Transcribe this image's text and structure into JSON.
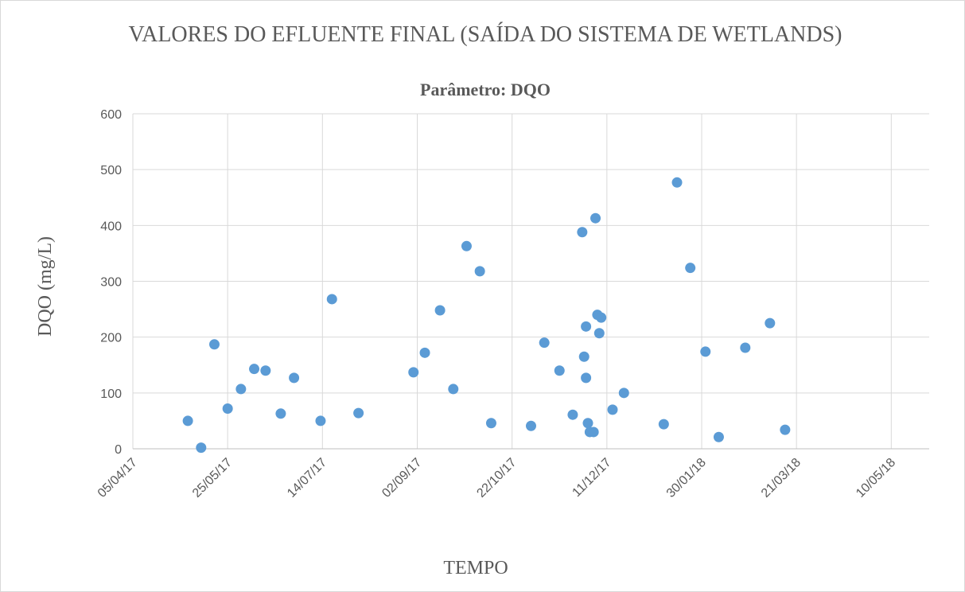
{
  "chart_data": {
    "type": "scatter",
    "title": "VALORES DO EFLUENTE FINAL (SAÍDA DO SISTEMA DE WETLANDS)",
    "subtitle": "Parâmetro: DQO",
    "x_label": "TEMPO",
    "y_label": "DQO (mg/L)",
    "color": "#5b9bd5",
    "grid": true,
    "xlim": [
      "05/04/17",
      "30/05/18"
    ],
    "xticks": [
      "05/04/17",
      "25/05/17",
      "14/07/17",
      "02/09/17",
      "22/10/17",
      "11/12/17",
      "30/01/18",
      "21/03/18",
      "10/05/18"
    ],
    "ylim": [
      0,
      600
    ],
    "yticks": [
      0,
      100,
      200,
      300,
      400,
      500,
      600
    ],
    "x": [
      "04/05/17",
      "11/05/17",
      "18/05/17",
      "25/05/17",
      "01/06/17",
      "08/06/17",
      "14/06/17",
      "22/06/17",
      "29/06/17",
      "13/07/17",
      "19/07/17",
      "02/08/17",
      "31/08/17",
      "06/09/17",
      "14/09/17",
      "21/09/17",
      "28/09/17",
      "05/10/17",
      "11/10/17",
      "01/11/17",
      "08/11/17",
      "16/11/17",
      "23/11/17",
      "28/11/17",
      "29/11/17",
      "30/11/17",
      "30/11/17",
      "01/12/17",
      "02/12/17",
      "04/12/17",
      "05/12/17",
      "06/12/17",
      "07/12/17",
      "08/12/17",
      "14/12/17",
      "20/12/17",
      "10/01/18",
      "17/01/18",
      "24/01/18",
      "01/02/18",
      "08/02/18",
      "22/02/18",
      "07/03/18",
      "15/03/18"
    ],
    "values": [
      50,
      2,
      187,
      72,
      107,
      143,
      140,
      63,
      127,
      50,
      268,
      64,
      137,
      172,
      248,
      107,
      363,
      318,
      46,
      41,
      190,
      140,
      61,
      388,
      165,
      219,
      127,
      46,
      30,
      30,
      413,
      240,
      207,
      235,
      70,
      100,
      44,
      477,
      324,
      174,
      21,
      181,
      225,
      34
    ]
  }
}
